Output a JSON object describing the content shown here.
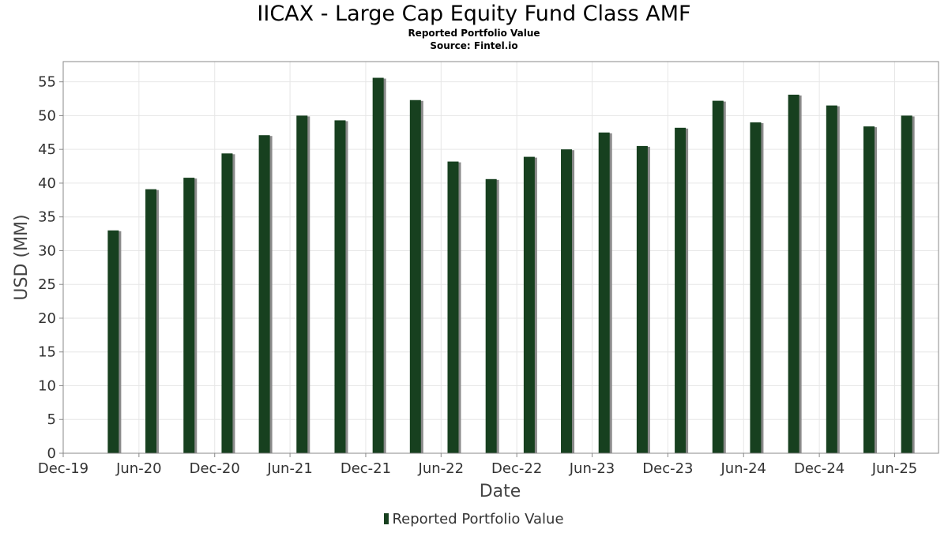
{
  "title": "IICAX - Large Cap Equity Fund Class AMF",
  "subtitle": "Reported Portfolio Value",
  "source": "Source: Fintel.io",
  "colors": {
    "bar": "#17401f",
    "bar_shadow": "#8a8a8a",
    "grid": "#e6e6e6",
    "axis": "#888888"
  },
  "chart_data": {
    "type": "bar",
    "title": "IICAX - Large Cap Equity Fund Class AMF",
    "subtitle": "Reported Portfolio Value",
    "xlabel": "Date",
    "ylabel": "USD (MM)",
    "ylim": [
      0,
      58
    ],
    "grid": true,
    "legend_placement": "bottom-center",
    "x_ticks": [
      "Dec-19",
      "Jun-20",
      "Dec-20",
      "Jun-21",
      "Dec-21",
      "Jun-22",
      "Dec-22",
      "Jun-23",
      "Dec-23",
      "Jun-24",
      "Dec-24",
      "Jun-25"
    ],
    "y_ticks": [
      0,
      5,
      10,
      15,
      20,
      25,
      30,
      35,
      40,
      45,
      50,
      55
    ],
    "x_domain": [
      "2019-12-01",
      "2025-09-15"
    ],
    "series": [
      {
        "name": "Reported Portfolio Value",
        "points": [
          {
            "x": "2020-03-31",
            "y": 33.0
          },
          {
            "x": "2020-06-30",
            "y": 39.1
          },
          {
            "x": "2020-09-30",
            "y": 40.8
          },
          {
            "x": "2020-12-31",
            "y": 44.4
          },
          {
            "x": "2021-03-31",
            "y": 47.1
          },
          {
            "x": "2021-06-30",
            "y": 50.0
          },
          {
            "x": "2021-09-30",
            "y": 49.3
          },
          {
            "x": "2021-12-31",
            "y": 55.6
          },
          {
            "x": "2022-03-31",
            "y": 52.3
          },
          {
            "x": "2022-06-30",
            "y": 43.2
          },
          {
            "x": "2022-09-30",
            "y": 40.6
          },
          {
            "x": "2022-12-31",
            "y": 43.9
          },
          {
            "x": "2023-03-31",
            "y": 45.0
          },
          {
            "x": "2023-06-30",
            "y": 47.5
          },
          {
            "x": "2023-09-30",
            "y": 45.5
          },
          {
            "x": "2023-12-31",
            "y": 48.2
          },
          {
            "x": "2024-03-31",
            "y": 52.2
          },
          {
            "x": "2024-06-30",
            "y": 49.0
          },
          {
            "x": "2024-09-30",
            "y": 53.1
          },
          {
            "x": "2024-12-31",
            "y": 51.5
          },
          {
            "x": "2025-03-31",
            "y": 48.4
          },
          {
            "x": "2025-06-30",
            "y": 50.0
          }
        ]
      }
    ]
  }
}
